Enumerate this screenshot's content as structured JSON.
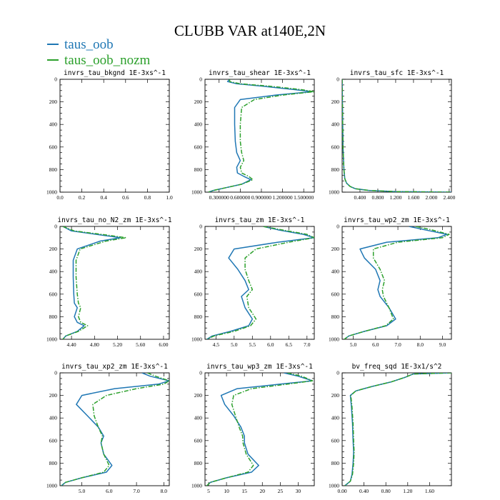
{
  "title": "CLUBB VAR at140E,2N",
  "colors": {
    "taus_oob": "#1f77b4",
    "taus_oob_nozm": "#2ca02c"
  },
  "legend": [
    {
      "name": "taus_oob",
      "color": "#1f77b4",
      "style": "solid"
    },
    {
      "name": "taus_oob_nozm",
      "color": "#2ca02c",
      "style": "dashdot"
    }
  ],
  "chart_data": [
    {
      "type": "line",
      "title": "invrs_tau_bkgnd  1E-3xs^-1",
      "xlim": [
        0.0,
        1.0
      ],
      "xticks": [
        0.0,
        0.2,
        0.4,
        0.6,
        0.8,
        1.0
      ],
      "xticklabels": [
        "0.0",
        "0.2",
        "0.4",
        "0.6",
        "0.8",
        "1.0"
      ],
      "ylim": [
        1000,
        0
      ],
      "yticks": [
        0,
        200,
        400,
        600,
        800,
        1000
      ],
      "series": []
    },
    {
      "type": "line",
      "title": "invrs_tau_shear  1E-3xs^-1",
      "xlim": [
        0.1,
        1.65
      ],
      "xticks": [
        0.3,
        0.6,
        0.9,
        1.2,
        1.5
      ],
      "xticklabels": [
        "0.300000",
        "0.600000",
        "0.900000",
        "1.200000",
        "1.500000"
      ],
      "ylim": [
        1000,
        0
      ],
      "yticks": [
        0,
        200,
        400,
        600,
        800,
        1000
      ],
      "series": [
        {
          "name": "taus_oob",
          "x": [
            0.45,
            0.42,
            0.55,
            0.9,
            1.35,
            1.62,
            1.1,
            0.6,
            0.52,
            0.52,
            0.53,
            0.55,
            0.6,
            0.55,
            0.56,
            0.65,
            0.75,
            0.62,
            0.4,
            0.22,
            0.15
          ],
          "y": [
            0,
            20,
            40,
            60,
            90,
            110,
            140,
            180,
            250,
            400,
            550,
            650,
            720,
            780,
            830,
            860,
            890,
            930,
            960,
            985,
            1000
          ]
        },
        {
          "name": "taus_oob_nozm",
          "x": [
            0.45,
            0.45,
            0.6,
            1.0,
            1.45,
            1.65,
            1.2,
            0.8,
            0.62,
            0.6,
            0.6,
            0.62,
            0.65,
            0.6,
            0.62,
            0.72,
            0.78,
            0.62,
            0.4,
            0.22,
            0.15
          ],
          "y": [
            0,
            20,
            40,
            60,
            90,
            110,
            140,
            180,
            250,
            400,
            550,
            650,
            720,
            780,
            830,
            860,
            890,
            930,
            960,
            985,
            1000
          ]
        }
      ]
    },
    {
      "type": "line",
      "title": "invrs_tau_sfc  1E-3xs^-1",
      "xlim": [
        0.0,
        2.45
      ],
      "xticks": [
        0.4,
        0.8,
        1.2,
        1.6,
        2.0,
        2.4
      ],
      "xticklabels": [
        "0.400",
        "0.800",
        "1.200",
        "1.600",
        "2.000",
        "2.400"
      ],
      "ylim": [
        1000,
        0
      ],
      "yticks": [
        0,
        200,
        400,
        600,
        800,
        1000
      ],
      "series": [
        {
          "name": "taus_oob",
          "x": [
            0.0,
            0.01,
            0.02,
            0.04,
            0.06,
            0.1,
            0.18,
            0.3,
            0.6,
            1.2,
            2.45
          ],
          "y": [
            0,
            300,
            600,
            800,
            880,
            920,
            950,
            970,
            985,
            995,
            1000
          ]
        },
        {
          "name": "taus_oob_nozm",
          "x": [
            0.0,
            0.01,
            0.02,
            0.04,
            0.06,
            0.1,
            0.18,
            0.3,
            0.6,
            1.2,
            2.45
          ],
          "y": [
            0,
            300,
            600,
            800,
            880,
            920,
            950,
            970,
            985,
            995,
            1000
          ]
        }
      ]
    },
    {
      "type": "line",
      "title": "invrs_tau_no_N2_zm  1E-3xs^-1",
      "xlim": [
        4.2,
        6.1
      ],
      "xticks": [
        4.4,
        4.8,
        5.2,
        5.6,
        6.0
      ],
      "xticklabels": [
        "4.40",
        "4.80",
        "5.20",
        "5.60",
        "6.00"
      ],
      "ylim": [
        1000,
        0
      ],
      "yticks": [
        0,
        200,
        400,
        600,
        800,
        1000
      ],
      "series": [
        {
          "name": "taus_oob",
          "x": [
            4.25,
            4.4,
            4.9,
            5.25,
            4.9,
            4.5,
            4.43,
            4.43,
            4.44,
            4.45,
            4.5,
            4.45,
            4.5,
            4.62,
            4.5,
            4.3,
            4.25
          ],
          "y": [
            0,
            40,
            75,
            100,
            130,
            200,
            300,
            450,
            600,
            680,
            720,
            800,
            850,
            880,
            930,
            970,
            1000
          ]
        },
        {
          "name": "taus_oob_nozm",
          "x": [
            4.25,
            4.45,
            5.0,
            5.35,
            5.0,
            4.55,
            4.48,
            4.48,
            4.5,
            4.52,
            4.56,
            4.52,
            4.56,
            4.68,
            4.52,
            4.3,
            4.25
          ],
          "y": [
            0,
            40,
            75,
            100,
            130,
            200,
            300,
            450,
            600,
            680,
            720,
            800,
            850,
            880,
            930,
            970,
            1000
          ]
        }
      ]
    },
    {
      "type": "line",
      "title": "invrs_tau_zm  1E-3xs^-1",
      "xlim": [
        4.2,
        7.2
      ],
      "xticks": [
        4.5,
        5.0,
        5.5,
        6.0,
        6.5,
        7.0
      ],
      "xticklabels": [
        "4.5",
        "5.0",
        "5.5",
        "6.0",
        "6.5",
        "7.0"
      ],
      "ylim": [
        1000,
        0
      ],
      "yticks": [
        0,
        200,
        400,
        600,
        800,
        1000
      ],
      "series": [
        {
          "name": "taus_oob",
          "x": [
            5.8,
            6.2,
            6.9,
            7.2,
            6.2,
            5.0,
            4.85,
            5.1,
            5.3,
            5.4,
            5.2,
            5.3,
            5.5,
            5.4,
            4.9,
            4.4,
            4.25
          ],
          "y": [
            0,
            30,
            70,
            100,
            140,
            200,
            280,
            380,
            480,
            560,
            620,
            720,
            820,
            880,
            930,
            970,
            1000
          ]
        },
        {
          "name": "taus_oob_nozm",
          "x": [
            5.8,
            6.3,
            7.0,
            7.2,
            6.5,
            5.6,
            5.3,
            5.3,
            5.4,
            5.5,
            5.35,
            5.4,
            5.6,
            5.45,
            5.0,
            4.45,
            4.25
          ],
          "y": [
            0,
            30,
            70,
            100,
            140,
            200,
            280,
            380,
            480,
            560,
            620,
            720,
            820,
            880,
            930,
            970,
            1000
          ]
        }
      ]
    },
    {
      "type": "line",
      "title": "invrs_tau_wp2_zm  1E-3xs^-1",
      "xlim": [
        4.5,
        9.4
      ],
      "xticks": [
        5.0,
        6.0,
        7.0,
        8.0,
        9.0
      ],
      "xticklabels": [
        "5.0",
        "6.0",
        "7.0",
        "8.0",
        "9.0"
      ],
      "ylim": [
        1000,
        0
      ],
      "yticks": [
        0,
        200,
        400,
        600,
        800,
        1000
      ],
      "series": [
        {
          "name": "taus_oob",
          "x": [
            7.5,
            8.2,
            9.2,
            8.8,
            6.5,
            5.3,
            5.5,
            6.0,
            6.2,
            6.1,
            6.2,
            6.6,
            6.9,
            6.5,
            5.5,
            4.8,
            4.6
          ],
          "y": [
            0,
            30,
            70,
            100,
            140,
            200,
            280,
            380,
            480,
            560,
            620,
            720,
            820,
            880,
            930,
            970,
            1000
          ]
        },
        {
          "name": "taus_oob_nozm",
          "x": [
            7.8,
            8.5,
            9.3,
            9.0,
            7.0,
            5.9,
            5.9,
            6.2,
            6.4,
            6.3,
            6.35,
            6.6,
            6.8,
            6.45,
            5.5,
            4.8,
            4.6
          ],
          "y": [
            0,
            30,
            70,
            100,
            140,
            200,
            280,
            380,
            480,
            560,
            620,
            720,
            820,
            880,
            930,
            970,
            1000
          ]
        }
      ]
    },
    {
      "type": "line",
      "title": "invrs_tau_xp2_zm  1E-3xs^-1",
      "xlim": [
        4.2,
        8.2
      ],
      "xticks": [
        5.0,
        6.0,
        7.0,
        8.0
      ],
      "xticklabels": [
        "5.0",
        "6.0",
        "7.0",
        "8.0"
      ],
      "ylim": [
        1000,
        0
      ],
      "yticks": [
        0,
        200,
        400,
        600,
        800,
        1000
      ],
      "series": [
        {
          "name": "taus_oob",
          "x": [
            7.2,
            7.5,
            8.2,
            7.8,
            6.2,
            5.0,
            4.8,
            5.2,
            5.6,
            5.8,
            5.7,
            5.8,
            6.1,
            5.9,
            5.0,
            4.4,
            4.25
          ],
          "y": [
            0,
            30,
            70,
            100,
            140,
            200,
            280,
            380,
            480,
            560,
            620,
            720,
            820,
            880,
            930,
            970,
            1000
          ]
        },
        {
          "name": "taus_oob_nozm",
          "x": [
            7.4,
            7.7,
            8.2,
            8.0,
            7.0,
            5.9,
            5.4,
            5.45,
            5.6,
            5.75,
            5.7,
            5.8,
            6.0,
            5.8,
            5.0,
            4.4,
            4.25
          ],
          "y": [
            0,
            30,
            70,
            100,
            140,
            200,
            280,
            380,
            480,
            560,
            620,
            720,
            820,
            880,
            930,
            970,
            1000
          ]
        }
      ]
    },
    {
      "type": "line",
      "title": "invrs_tau_wp3_zm  1E-3xs^-1",
      "xlim": [
        4.0,
        34.5
      ],
      "xticks": [
        5,
        10,
        15,
        20,
        25,
        30
      ],
      "xticklabels": [
        "5",
        "10",
        "15",
        "20",
        "25",
        "30"
      ],
      "ylim": [
        1000,
        0
      ],
      "yticks": [
        0,
        200,
        400,
        600,
        800,
        1000
      ],
      "series": [
        {
          "name": "taus_oob",
          "x": [
            26,
            30,
            34,
            25,
            13,
            8.5,
            9.5,
            12,
            14,
            15,
            15,
            16,
            19,
            17,
            10,
            5.5,
            4.5
          ],
          "y": [
            0,
            30,
            70,
            100,
            140,
            200,
            280,
            380,
            480,
            560,
            620,
            720,
            820,
            880,
            930,
            970,
            1000
          ]
        },
        {
          "name": "taus_oob_nozm",
          "x": [
            27,
            31,
            34,
            27,
            17,
            12,
            11.5,
            12.5,
            13.5,
            14.5,
            14.6,
            15.5,
            17.5,
            16,
            10,
            5.5,
            4.5
          ],
          "y": [
            0,
            30,
            70,
            100,
            140,
            200,
            280,
            380,
            480,
            560,
            620,
            720,
            820,
            880,
            930,
            970,
            1000
          ]
        }
      ]
    },
    {
      "type": "line",
      "title": "bv_freq_sqd  1E-3x1/s^2",
      "xlim": [
        0.0,
        2.0
      ],
      "xticks": [
        0.0,
        0.4,
        0.8,
        1.2,
        1.6
      ],
      "xticklabels": [
        "0.00",
        "0.40",
        "0.80",
        "1.20",
        "1.60"
      ],
      "ylim": [
        1000,
        0
      ],
      "yticks": [
        0,
        200,
        400,
        600,
        800,
        1000
      ],
      "series": [
        {
          "name": "taus_oob",
          "x": [
            2.0,
            1.3,
            1.15,
            0.9,
            0.55,
            0.25,
            0.15,
            0.17,
            0.19,
            0.2,
            0.21,
            0.2,
            0.18,
            0.15,
            0.05
          ],
          "y": [
            0,
            10,
            40,
            80,
            120,
            160,
            200,
            300,
            450,
            600,
            700,
            800,
            900,
            960,
            1000
          ]
        },
        {
          "name": "taus_oob_nozm",
          "x": [
            2.0,
            1.3,
            1.15,
            0.9,
            0.55,
            0.25,
            0.16,
            0.18,
            0.2,
            0.21,
            0.22,
            0.21,
            0.19,
            0.15,
            0.05
          ],
          "y": [
            0,
            10,
            40,
            80,
            120,
            160,
            200,
            300,
            450,
            600,
            700,
            800,
            900,
            960,
            1000
          ]
        }
      ]
    }
  ]
}
